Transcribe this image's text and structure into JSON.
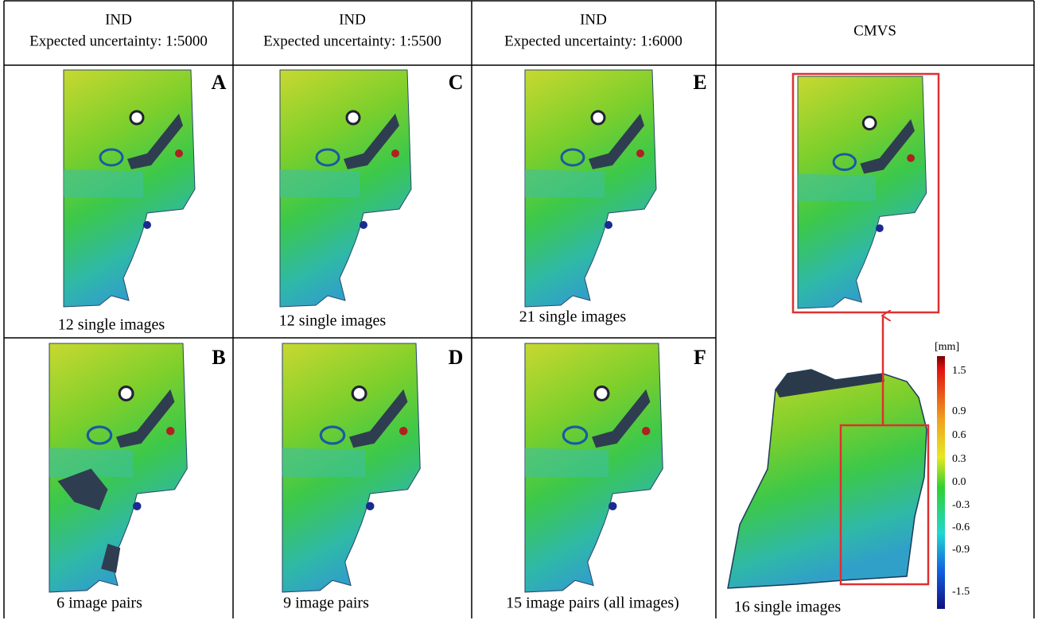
{
  "header": {
    "columns": [
      {
        "title": "IND",
        "subtitle": "Expected uncertainty: 1:5000"
      },
      {
        "title": "IND",
        "subtitle": "Expected uncertainty: 1:5500"
      },
      {
        "title": "IND",
        "subtitle": "Expected uncertainty: 1:6000"
      },
      {
        "title": "CMVS"
      }
    ]
  },
  "panels": [
    {
      "letter": "A",
      "caption": "12 single images"
    },
    {
      "letter": "C",
      "caption": "12 single images"
    },
    {
      "letter": "E",
      "caption": "21 single images"
    },
    {
      "letter": "B",
      "caption": "6 image pairs"
    },
    {
      "letter": "D",
      "caption": "9 image pairs"
    },
    {
      "letter": "F",
      "caption": "15 image pairs (all images)"
    }
  ],
  "cmvs": {
    "caption": "16 single images"
  },
  "colorbar": {
    "unit": "[mm]",
    "labels": [
      "1.5",
      "0.9",
      "0.6",
      "0.3",
      "0.0",
      "-0.3",
      "-0.6",
      "-0.9",
      "-1.5"
    ]
  }
}
